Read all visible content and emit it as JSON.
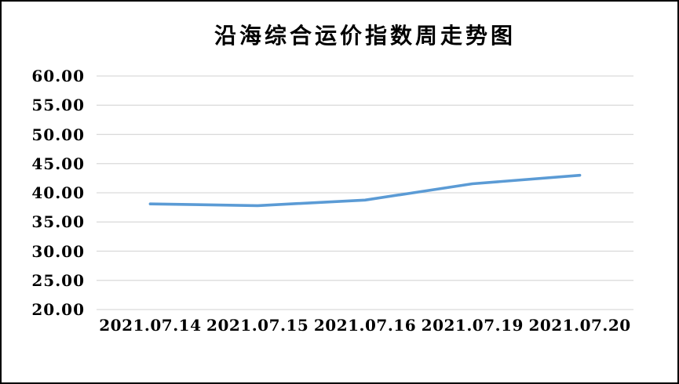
{
  "chart_data": {
    "type": "line",
    "title": "沿海综合运价指数周走势图",
    "categories": [
      "2021.07.14",
      "2021.07.15",
      "2021.07.16",
      "2021.07.19",
      "2021.07.20"
    ],
    "values": [
      38.1,
      37.8,
      38.75,
      41.55,
      43.0
    ],
    "xlabel": "",
    "ylabel": "",
    "ylim": [
      20,
      60
    ],
    "ytick_step": 5,
    "ytick_labels": [
      "20.00",
      "25.00",
      "30.00",
      "35.00",
      "40.00",
      "45.00",
      "50.00",
      "55.00",
      "60.00"
    ],
    "grid": "horizontal-only",
    "legend_position": "none",
    "line_color": "#5B9BD5",
    "grid_color": "#D9D9D9",
    "frame_color": "#000000",
    "background_color": "#FFFFFF",
    "text_color": "#000000"
  }
}
